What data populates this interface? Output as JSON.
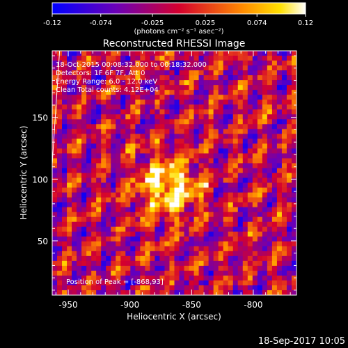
{
  "chart_data": {
    "type": "heatmap",
    "title": "Reconstructed RHESSI Image",
    "xlabel": "Heliocentric X (arcsec)",
    "ylabel": "Heliocentric Y (arcsec)",
    "xlim": [
      -963,
      -765
    ],
    "ylim": [
      6,
      204
    ],
    "x_ticks": [
      -950,
      -900,
      -850,
      -800
    ],
    "x_tick_labels": [
      "-950",
      "-900",
      "-850",
      "-800"
    ],
    "y_ticks": [
      50,
      100,
      150
    ],
    "y_tick_labels": [
      "50",
      "100",
      "150"
    ],
    "colorbar": {
      "range": [
        -0.12,
        0.12
      ],
      "ticks": [
        -0.12,
        -0.074,
        -0.025,
        0.025,
        0.074,
        0.12
      ],
      "tick_labels": [
        "-0.12",
        "-0.074",
        "-0.025",
        "0.025",
        "0.074",
        "0.12"
      ],
      "unit_label": "(photons cm⁻² s⁻¹ asec⁻²)",
      "colormap": "blue-purple-red-yellow-white"
    },
    "annotations": [
      "18-Oct-2015 00:08:32.000 to 00:18:32.000",
      "Detectors: 1F 6F 7F, Att 0",
      "Energy Range: 6.0 - 12.0 keV",
      "Clean    Total counts: 4.12E+04"
    ],
    "peak_label": "Position of Peak = [-868,93]",
    "peak": {
      "x": -868,
      "y": 93,
      "value": 0.12
    },
    "grid_cells": 50,
    "limb": [
      [
        -957,
        204
      ],
      [
        -963,
        112
      ]
    ]
  },
  "footer": {
    "timestamp": "18-Sep-2017 10:05"
  }
}
